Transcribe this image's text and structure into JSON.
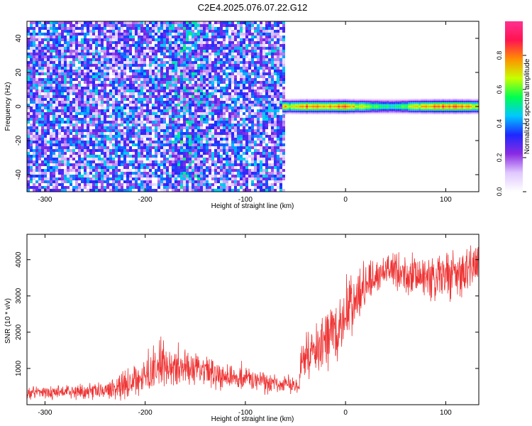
{
  "title": "C2E4.2025.076.07.22.G12",
  "chart_data": [
    {
      "type": "heatmap",
      "title": "C2E4.2025.076.07.22.G12",
      "xlabel": "Height of straight line (km)",
      "ylabel": "Frequency (Hz)",
      "xlim": [
        -318,
        133
      ],
      "ylim": [
        -50,
        50
      ],
      "xticks": [
        -300,
        -200,
        -100,
        0,
        100
      ],
      "yticks": [
        -40,
        -20,
        0,
        20,
        40
      ],
      "colorbar": {
        "label": "Normalized spectral amplitude",
        "range": [
          0,
          1
        ],
        "ticks": [
          0.0,
          0.2,
          0.4,
          0.6,
          0.8
        ],
        "tick_labels": [
          "0.0",
          "0.2",
          "0.4",
          "0.6",
          "0.8"
        ],
        "colormap": [
          "#ffffff",
          "#e0c8ff",
          "#8a2be2",
          "#1e28ff",
          "#00c8ff",
          "#00ff50",
          "#c8ff00",
          "#ff9000",
          "#ff1450",
          "#ff3090"
        ]
      },
      "noise_region_x": [
        -318,
        -62
      ],
      "noise_level": 0.3,
      "signal_region_x": [
        -63,
        133
      ],
      "signal_frequency_hz": 0,
      "signal_halfwidth_hz": 3,
      "signal_peaks": [
        {
          "x": -60,
          "value": 0.7
        },
        {
          "x": -40,
          "value": 0.88
        },
        {
          "x": -30,
          "value": 0.82
        },
        {
          "x": -12,
          "value": 0.85
        },
        {
          "x": 0,
          "value": 0.9
        },
        {
          "x": 10,
          "value": 0.75
        },
        {
          "x": 45,
          "value": 0.55
        },
        {
          "x": 85,
          "value": 0.85
        },
        {
          "x": 100,
          "value": 0.9
        },
        {
          "x": 128,
          "value": 0.8
        }
      ]
    },
    {
      "type": "line",
      "xlabel": "Height of straight line (km)",
      "ylabel": "SNR (10 * v/v)",
      "xlim": [
        -318,
        133
      ],
      "ylim": [
        0,
        4700
      ],
      "xticks": [
        -300,
        -200,
        -100,
        0,
        100
      ],
      "yticks": [
        1000,
        2000,
        3000,
        4000
      ],
      "color": "#ee3333",
      "series": [
        {
          "x": [
            -318,
            -300,
            -280,
            -260,
            -240,
            -230,
            -220,
            -200,
            -185,
            -180,
            -170,
            -160,
            -150,
            -140,
            -130,
            -120,
            -110,
            -100,
            -90,
            -80,
            -70,
            -60,
            -50,
            -46,
            -45,
            -40,
            -30,
            -20,
            -10,
            0,
            10,
            20,
            30,
            40,
            50,
            60,
            70,
            80,
            90,
            100,
            110,
            120,
            133
          ],
          "y": [
            330,
            340,
            350,
            360,
            380,
            450,
            600,
            850,
            1100,
            1150,
            1000,
            950,
            920,
            900,
            870,
            820,
            770,
            720,
            650,
            620,
            560,
            540,
            520,
            500,
            1100,
            1300,
            1500,
            1700,
            2000,
            2400,
            2800,
            3300,
            3500,
            3750,
            3700,
            3600,
            3500,
            3450,
            3450,
            3500,
            3600,
            3650,
            3800
          ],
          "spread": [
            160,
            160,
            160,
            160,
            180,
            250,
            350,
            450,
            550,
            500,
            450,
            400,
            380,
            360,
            340,
            320,
            300,
            280,
            260,
            240,
            220,
            200,
            180,
            150,
            450,
            500,
            550,
            650,
            700,
            700,
            600,
            500,
            400,
            350,
            450,
            500,
            550,
            550,
            550,
            600,
            600,
            550,
            550
          ]
        }
      ]
    }
  ]
}
